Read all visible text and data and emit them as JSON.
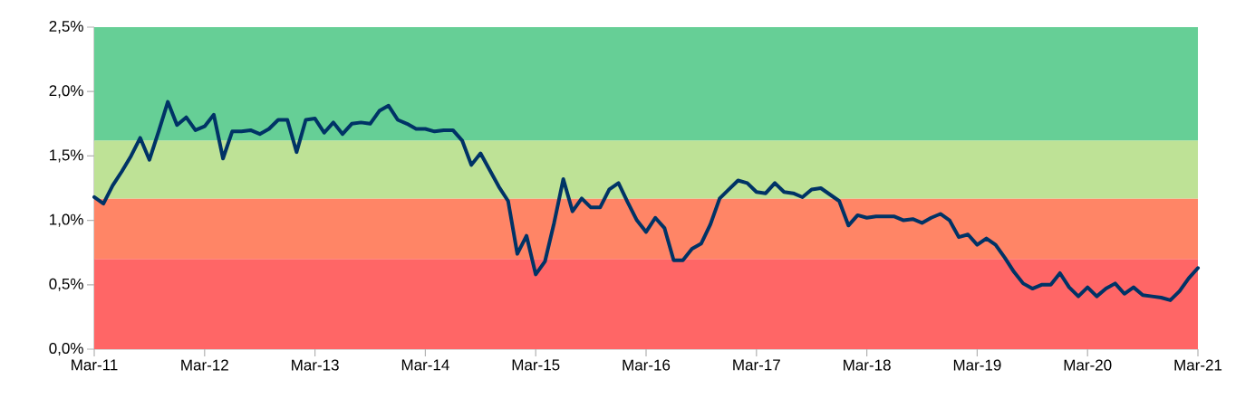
{
  "chart_data": {
    "type": "line",
    "x": [
      "2011-03",
      "2011-04",
      "2011-05",
      "2011-06",
      "2011-07",
      "2011-08",
      "2011-09",
      "2011-10",
      "2011-11",
      "2011-12",
      "2012-01",
      "2012-02",
      "2012-03",
      "2012-04",
      "2012-05",
      "2012-06",
      "2012-07",
      "2012-08",
      "2012-09",
      "2012-10",
      "2012-11",
      "2012-12",
      "2013-01",
      "2013-02",
      "2013-03",
      "2013-04",
      "2013-05",
      "2013-06",
      "2013-07",
      "2013-08",
      "2013-09",
      "2013-10",
      "2013-11",
      "2013-12",
      "2014-01",
      "2014-02",
      "2014-03",
      "2014-04",
      "2014-05",
      "2014-06",
      "2014-07",
      "2014-08",
      "2014-09",
      "2014-10",
      "2014-11",
      "2014-12",
      "2015-01",
      "2015-02",
      "2015-03",
      "2015-04",
      "2015-05",
      "2015-06",
      "2015-07",
      "2015-08",
      "2015-09",
      "2015-10",
      "2015-11",
      "2015-12",
      "2016-01",
      "2016-02",
      "2016-03",
      "2016-04",
      "2016-05",
      "2016-06",
      "2016-07",
      "2016-08",
      "2016-09",
      "2016-10",
      "2016-11",
      "2016-12",
      "2017-01",
      "2017-02",
      "2017-03",
      "2017-04",
      "2017-05",
      "2017-06",
      "2017-07",
      "2017-08",
      "2017-09",
      "2017-10",
      "2017-11",
      "2017-12",
      "2018-01",
      "2018-02",
      "2018-03",
      "2018-04",
      "2018-05",
      "2018-06",
      "2018-07",
      "2018-08",
      "2018-09",
      "2018-10",
      "2018-11",
      "2018-12",
      "2019-01",
      "2019-02",
      "2019-03",
      "2019-04",
      "2019-05",
      "2019-06",
      "2019-07",
      "2019-08",
      "2019-09",
      "2019-10",
      "2019-11",
      "2019-12",
      "2020-01",
      "2020-02",
      "2020-03",
      "2020-04",
      "2020-05",
      "2020-06",
      "2020-07",
      "2020-08",
      "2020-09",
      "2020-10",
      "2020-11",
      "2020-12",
      "2021-01",
      "2021-02",
      "2021-03"
    ],
    "series": [
      {
        "color": "#003366",
        "values": [
          1.18,
          1.13,
          1.27,
          1.38,
          1.5,
          1.64,
          1.47,
          1.69,
          1.92,
          1.74,
          1.8,
          1.7,
          1.73,
          1.82,
          1.48,
          1.69,
          1.69,
          1.7,
          1.67,
          1.71,
          1.78,
          1.78,
          1.53,
          1.78,
          1.79,
          1.68,
          1.76,
          1.67,
          1.75,
          1.76,
          1.75,
          1.85,
          1.89,
          1.78,
          1.75,
          1.71,
          1.71,
          1.69,
          1.7,
          1.7,
          1.62,
          1.43,
          1.52,
          1.39,
          1.26,
          1.15,
          0.74,
          0.88,
          0.58,
          0.68,
          0.98,
          1.32,
          1.07,
          1.17,
          1.1,
          1.1,
          1.24,
          1.29,
          1.14,
          1.0,
          0.91,
          1.02,
          0.94,
          0.69,
          0.69,
          0.78,
          0.82,
          0.97,
          1.17,
          1.24,
          1.31,
          1.29,
          1.22,
          1.21,
          1.29,
          1.22,
          1.21,
          1.18,
          1.24,
          1.25,
          1.2,
          1.15,
          0.96,
          1.04,
          1.02,
          1.03,
          1.03,
          1.03,
          1.0,
          1.01,
          0.98,
          1.02,
          1.05,
          1.0,
          0.87,
          0.89,
          0.81,
          0.86,
          0.81,
          0.71,
          0.6,
          0.51,
          0.47,
          0.5,
          0.5,
          0.59,
          0.48,
          0.41,
          0.48,
          0.41,
          0.47,
          0.51,
          0.43,
          0.48,
          0.42,
          0.41,
          0.4,
          0.38,
          0.45,
          0.55,
          0.63
        ]
      }
    ],
    "xlim": [
      "2011-03",
      "2021-03"
    ],
    "xticks": [
      {
        "value": "2011-03",
        "label": "Mar-11"
      },
      {
        "value": "2012-03",
        "label": "Mar-12"
      },
      {
        "value": "2013-03",
        "label": "Mar-13"
      },
      {
        "value": "2014-03",
        "label": "Mar-14"
      },
      {
        "value": "2015-03",
        "label": "Mar-15"
      },
      {
        "value": "2016-03",
        "label": "Mar-16"
      },
      {
        "value": "2017-03",
        "label": "Mar-17"
      },
      {
        "value": "2018-03",
        "label": "Mar-18"
      },
      {
        "value": "2019-03",
        "label": "Mar-19"
      },
      {
        "value": "2020-03",
        "label": "Mar-20"
      },
      {
        "value": "2021-03",
        "label": "Mar-21"
      }
    ],
    "ylim": [
      0,
      2.5
    ],
    "yticks": [
      {
        "value": 0,
        "label": "0,0%"
      },
      {
        "value": 0.5,
        "label": "0,5%"
      },
      {
        "value": 1.0,
        "label": "1,0%"
      },
      {
        "value": 1.5,
        "label": "1,5%"
      },
      {
        "value": 2.0,
        "label": "2,0%"
      },
      {
        "value": 2.5,
        "label": "2,5%"
      }
    ],
    "bands": [
      {
        "axis": "y",
        "from": 0,
        "to": 0.7,
        "color": "#ff6666"
      },
      {
        "axis": "y",
        "from": 0.7,
        "to": 1.17,
        "color": "#ff8566"
      },
      {
        "axis": "y",
        "from": 1.17,
        "to": 1.62,
        "color": "#bee296"
      },
      {
        "axis": "y",
        "from": 1.62,
        "to": 2.5,
        "color": "#66cf96"
      }
    ],
    "grid": false,
    "marker": "none",
    "line_style": "solid"
  }
}
